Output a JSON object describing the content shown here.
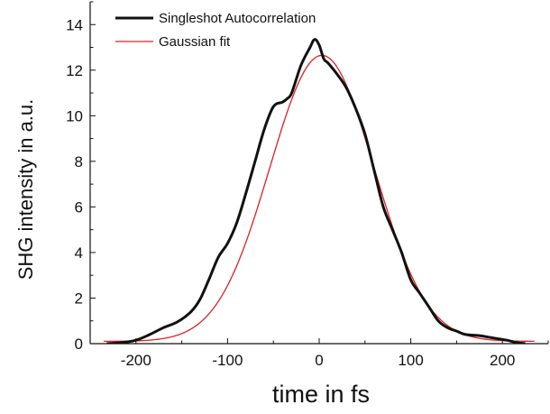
{
  "chart_data": {
    "type": "line",
    "title": "",
    "xlabel": "time in fs",
    "ylabel": "SHG intensity in a.u.",
    "xlim": [
      -250,
      250
    ],
    "ylim": [
      0,
      15
    ],
    "x_ticks": [
      -200,
      -100,
      0,
      100,
      200
    ],
    "y_ticks": [
      0,
      2,
      4,
      6,
      8,
      10,
      12,
      14
    ],
    "grid": false,
    "legend_position": "top-left",
    "series": [
      {
        "name": "Singleshot Autocorrelation",
        "color": "#111111",
        "x": [
          -232,
          -215,
          -200,
          -185,
          -170,
          -155,
          -140,
          -130,
          -120,
          -110,
          -100,
          -90,
          -80,
          -70,
          -60,
          -50,
          -40,
          -35,
          -30,
          -20,
          -10,
          -5,
          0,
          5,
          10,
          20,
          30,
          40,
          50,
          60,
          70,
          80,
          90,
          100,
          110,
          120,
          130,
          140,
          150,
          160,
          175,
          190,
          205,
          215,
          225
        ],
        "y": [
          0.0,
          0.05,
          0.15,
          0.4,
          0.7,
          0.95,
          1.4,
          1.95,
          2.85,
          3.8,
          4.4,
          5.3,
          6.6,
          8.0,
          9.4,
          10.4,
          10.6,
          10.75,
          11.0,
          12.2,
          13.0,
          13.35,
          13.1,
          12.5,
          12.3,
          11.8,
          11.2,
          10.3,
          9.2,
          7.6,
          6.0,
          5.0,
          4.0,
          2.8,
          2.2,
          1.6,
          1.0,
          0.7,
          0.55,
          0.4,
          0.35,
          0.25,
          0.15,
          0.05,
          0.0
        ]
      },
      {
        "name": "Gaussian fit",
        "color": "#dd2020",
        "gaussian": {
          "amplitude": 12.55,
          "center": 3,
          "sigma": 57,
          "offset": 0.1
        },
        "x_range": [
          -235,
          235
        ]
      }
    ]
  }
}
